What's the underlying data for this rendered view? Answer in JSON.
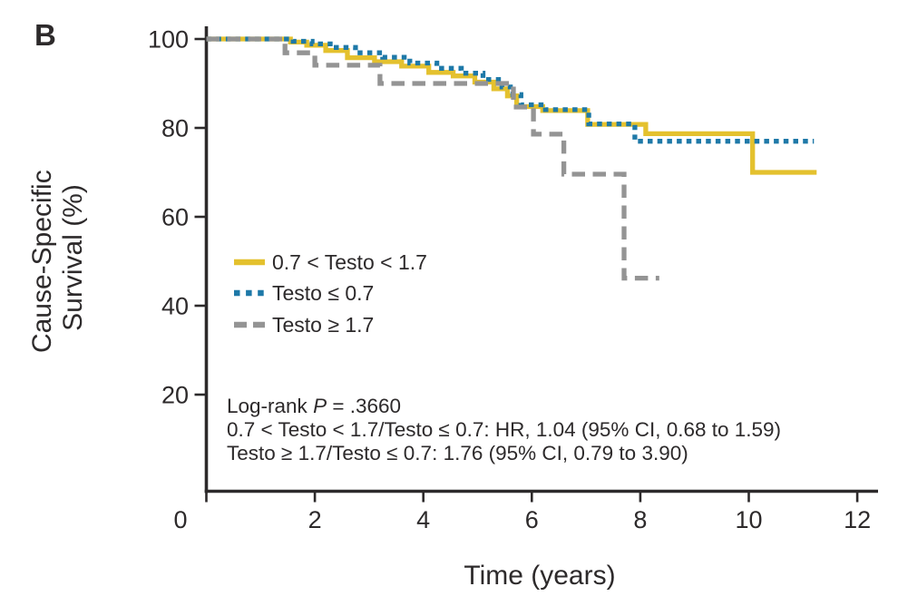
{
  "panel_label": "B",
  "chart_data": {
    "type": "line",
    "subtype": "kaplan-meier-step",
    "xlabel": "Time (years)",
    "ylabel": "Cause-Specific Survival (%)",
    "ylabel_line1": "Cause-Specific",
    "ylabel_line2": "Survival (%)",
    "xlim": [
      0,
      12.4
    ],
    "ylim": [
      0,
      100
    ],
    "xticks": [
      0,
      2,
      4,
      6,
      8,
      10,
      12
    ],
    "yticks": [
      100,
      80,
      60,
      40,
      20
    ],
    "grid": false,
    "legend_position": "inside-left-middle",
    "series": [
      {
        "name": "0.7 < Testo < 1.7",
        "color": "#E4C12E",
        "style": "solid",
        "points": [
          [
            0,
            100
          ],
          [
            1.55,
            99.3
          ],
          [
            1.85,
            98.6
          ],
          [
            2.2,
            97.4
          ],
          [
            2.6,
            95.8
          ],
          [
            3.1,
            94.9
          ],
          [
            3.6,
            93.9
          ],
          [
            4.1,
            92.5
          ],
          [
            4.55,
            91.7
          ],
          [
            4.95,
            90.3
          ],
          [
            5.3,
            88.8
          ],
          [
            5.55,
            87.2
          ],
          [
            5.72,
            84.8
          ],
          [
            6.2,
            83.9
          ],
          [
            7.03,
            80.8
          ],
          [
            8.1,
            78.7
          ],
          [
            10.07,
            70.0
          ],
          [
            11.25,
            70.0
          ]
        ]
      },
      {
        "name": "Testo ≤ 0.7",
        "color": "#1E79A8",
        "style": "dotted",
        "points": [
          [
            0,
            100
          ],
          [
            1.6,
            99.5
          ],
          [
            1.95,
            98.9
          ],
          [
            2.35,
            98.1
          ],
          [
            2.75,
            96.9
          ],
          [
            3.25,
            95.9
          ],
          [
            3.75,
            94.6
          ],
          [
            4.25,
            93.4
          ],
          [
            4.7,
            92.3
          ],
          [
            5.1,
            90.9
          ],
          [
            5.45,
            89.2
          ],
          [
            5.65,
            87.5
          ],
          [
            5.8,
            85.2
          ],
          [
            6.25,
            84.1
          ],
          [
            7.05,
            80.9
          ],
          [
            7.9,
            77.0
          ],
          [
            11.2,
            77.0
          ]
        ]
      },
      {
        "name": "Testo ≥ 1.7",
        "color": "#949494",
        "style": "dashed",
        "points": [
          [
            0,
            100
          ],
          [
            1.45,
            96.9
          ],
          [
            2.0,
            94.1
          ],
          [
            3.2,
            90.0
          ],
          [
            5.66,
            84.7
          ],
          [
            6.03,
            78.6
          ],
          [
            6.59,
            69.6
          ],
          [
            7.7,
            46.2
          ],
          [
            8.35,
            46.2
          ]
        ]
      }
    ],
    "annotations": {
      "logrank_prefix": "Log-rank ",
      "logrank_p": "P",
      "logrank_rest": " = .3660",
      "hr_line1": "0.7 < Testo < 1.7/Testo ≤ 0.7: HR, 1.04 (95% CI, 0.68 to 1.59)",
      "hr_line2": "Testo ≥ 1.7/Testo ≤ 0.7: 1.76 (95% CI, 0.79 to 3.90)"
    }
  }
}
